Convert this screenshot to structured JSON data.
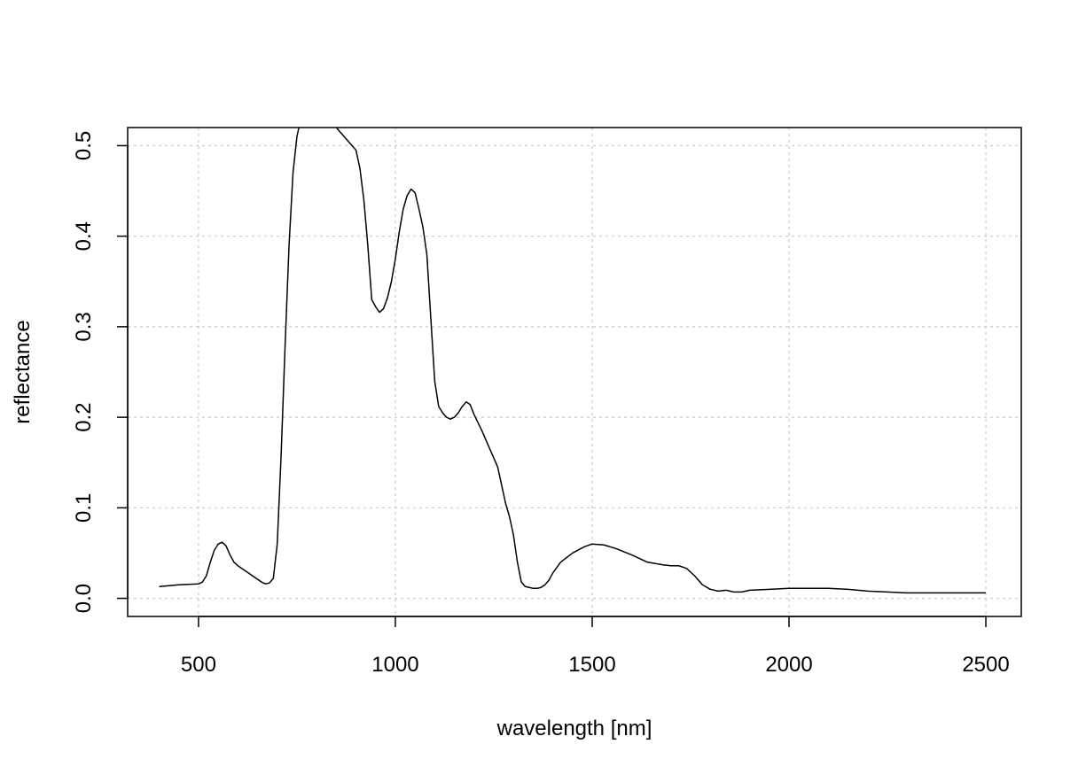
{
  "chart_data": {
    "type": "line",
    "title": "",
    "xlabel": "wavelength [nm]",
    "ylabel": "reflectance",
    "xlim": [
      320,
      2590
    ],
    "ylim": [
      -0.02,
      0.52
    ],
    "grid": true,
    "x_ticks": [
      500,
      1000,
      1500,
      2000,
      2500
    ],
    "x_tick_labels": [
      "500",
      "1000",
      "1500",
      "2000",
      "2500"
    ],
    "y_ticks": [
      0.0,
      0.1,
      0.2,
      0.3,
      0.4,
      0.5
    ],
    "y_tick_labels": [
      "0.0",
      "0.1",
      "0.2",
      "0.3",
      "0.4",
      "0.5"
    ],
    "series": [
      {
        "color": "#000000",
        "x": [
          400,
          450,
          500,
          510,
          520,
          530,
          540,
          550,
          560,
          570,
          580,
          590,
          600,
          620,
          640,
          660,
          670,
          680,
          690,
          700,
          710,
          720,
          730,
          740,
          750,
          760,
          770,
          780,
          800,
          820,
          840,
          860,
          880,
          900,
          910,
          920,
          930,
          940,
          950,
          960,
          970,
          980,
          990,
          1000,
          1010,
          1020,
          1030,
          1040,
          1050,
          1060,
          1070,
          1080,
          1090,
          1100,
          1110,
          1120,
          1130,
          1140,
          1150,
          1160,
          1170,
          1180,
          1190,
          1200,
          1220,
          1240,
          1260,
          1270,
          1280,
          1290,
          1300,
          1310,
          1320,
          1330,
          1340,
          1350,
          1360,
          1370,
          1380,
          1390,
          1400,
          1420,
          1450,
          1480,
          1500,
          1530,
          1560,
          1600,
          1640,
          1680,
          1700,
          1720,
          1740,
          1760,
          1780,
          1800,
          1820,
          1840,
          1850,
          1860,
          1870,
          1880,
          1900,
          1950,
          2000,
          2100,
          2150,
          2200,
          2250,
          2300,
          2350,
          2400,
          2500
        ],
        "y": [
          0.013,
          0.015,
          0.016,
          0.018,
          0.025,
          0.04,
          0.053,
          0.06,
          0.062,
          0.058,
          0.048,
          0.04,
          0.036,
          0.03,
          0.024,
          0.018,
          0.016,
          0.017,
          0.022,
          0.06,
          0.16,
          0.28,
          0.39,
          0.47,
          0.51,
          0.53,
          0.54,
          0.545,
          0.548,
          0.54,
          0.525,
          0.515,
          0.505,
          0.495,
          0.475,
          0.44,
          0.39,
          0.33,
          0.322,
          0.316,
          0.32,
          0.332,
          0.35,
          0.375,
          0.405,
          0.43,
          0.445,
          0.452,
          0.448,
          0.43,
          0.41,
          0.38,
          0.31,
          0.24,
          0.212,
          0.205,
          0.2,
          0.198,
          0.2,
          0.205,
          0.212,
          0.217,
          0.214,
          0.203,
          0.185,
          0.165,
          0.145,
          0.125,
          0.105,
          0.09,
          0.07,
          0.04,
          0.018,
          0.013,
          0.012,
          0.011,
          0.011,
          0.012,
          0.015,
          0.02,
          0.028,
          0.04,
          0.05,
          0.057,
          0.06,
          0.059,
          0.055,
          0.048,
          0.04,
          0.037,
          0.036,
          0.036,
          0.033,
          0.025,
          0.015,
          0.01,
          0.008,
          0.009,
          0.008,
          0.007,
          0.007,
          0.007,
          0.009,
          0.01,
          0.011,
          0.011,
          0.01,
          0.008,
          0.007,
          0.006,
          0.006,
          0.006,
          0.006
        ]
      }
    ]
  }
}
